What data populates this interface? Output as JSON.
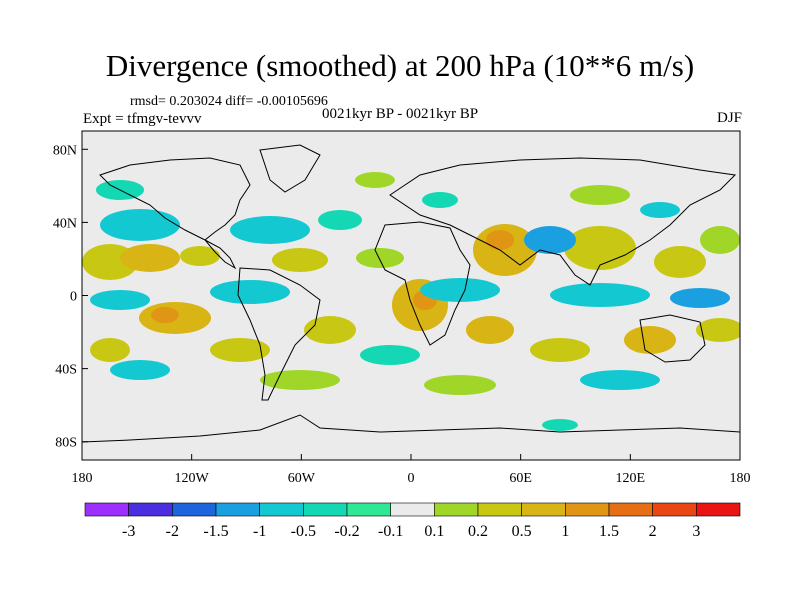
{
  "title": "Divergence (smoothed) at 200 hPa (10**6 m/s)",
  "stats": "rmsd= 0.203024 diff= -0.00105696",
  "experiment": "Expt = tfmgv-tevvv",
  "period": "0021kyr BP - 0021kyr BP",
  "season": "DJF",
  "map": {
    "lon_range": [
      -180,
      180
    ],
    "lat_range": [
      -90,
      90
    ],
    "background_color": "#ebebeb",
    "lat_ticks": [
      {
        "label": "80N",
        "lat": 80
      },
      {
        "label": "40N",
        "lat": 40
      },
      {
        "label": "0",
        "lat": 0
      },
      {
        "label": "40S",
        "lat": -40
      },
      {
        "label": "80S",
        "lat": -80
      }
    ],
    "lon_ticks": [
      {
        "label": "180",
        "lon": -180
      },
      {
        "label": "120W",
        "lon": -120
      },
      {
        "label": "60W",
        "lon": -60
      },
      {
        "label": "0",
        "lon": 0
      },
      {
        "label": "60E",
        "lon": 60
      },
      {
        "label": "120E",
        "lon": 120
      },
      {
        "label": "180",
        "lon": 180
      }
    ]
  },
  "colorbar": {
    "colors": [
      "#9b30ff",
      "#4a2fe0",
      "#1e64dc",
      "#1aa0e0",
      "#14c8d2",
      "#14d8b4",
      "#2ee896",
      "#ebebeb",
      "#a0d628",
      "#c8c814",
      "#d8b414",
      "#e09614",
      "#e66e14",
      "#ea4614",
      "#eb1414"
    ],
    "labels": [
      "-3",
      "-2",
      "-1.5",
      "-1",
      "-0.5",
      "-0.2",
      "-0.1",
      "0.1",
      "0.2",
      "0.5",
      "1",
      "1.5",
      "2",
      "3"
    ]
  }
}
